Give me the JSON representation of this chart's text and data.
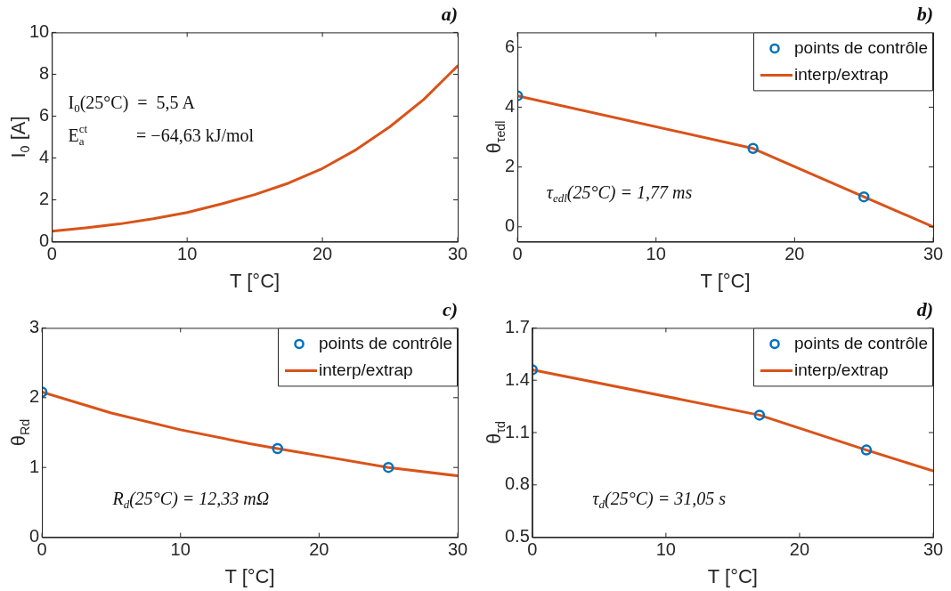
{
  "chart_data": [
    {
      "type": "line",
      "title": "a)",
      "xlabel": "T [°C]",
      "ylabel": "I$_{0}$ [A]",
      "xlim": [
        0,
        30
      ],
      "xticks": [
        0,
        10,
        20,
        30
      ],
      "ylim": [
        0,
        10
      ],
      "yticks": [
        0,
        2,
        4,
        6,
        8,
        10
      ],
      "series": [
        {
          "type": "line",
          "color": "#d95319",
          "x": [
            0,
            2.5,
            5,
            7.5,
            10,
            12.5,
            15,
            17.5,
            20,
            22.5,
            25,
            27.5,
            30
          ],
          "values": [
            0.5,
            0.66,
            0.85,
            1.1,
            1.4,
            1.8,
            2.25,
            2.8,
            3.5,
            4.4,
            5.5,
            6.8,
            8.4
          ]
        }
      ],
      "annotations": [
        "I$_{0}$(25°C)  =  5,5 A",
        "E$_{a}$$^{ct}$           = −64,63 kJ/mol"
      ]
    },
    {
      "type": "line",
      "title": "b)",
      "xlabel": "T [°C]",
      "ylabel": "θ$_{τedl}$",
      "xlim": [
        0,
        30
      ],
      "xticks": [
        0,
        10,
        20,
        30
      ],
      "ylim": [
        -0.5,
        6.5
      ],
      "yticks": [
        0,
        2,
        4,
        6
      ],
      "legend": "top right",
      "series": [
        {
          "type": "scatter",
          "name": "points de contrôle",
          "color": "#0072bd",
          "marker": "circle",
          "x": [
            0,
            17,
            25
          ],
          "values": [
            4.38,
            2.62,
            1.0
          ]
        },
        {
          "type": "line",
          "name": "interp/extrap",
          "color": "#d95319",
          "x": [
            0,
            17,
            25,
            30
          ],
          "values": [
            4.38,
            2.62,
            1.0,
            0.0
          ]
        }
      ],
      "annotations": [
        "τ$_{edl}$(25°C) = 1,77 ms"
      ]
    },
    {
      "type": "line",
      "title": "c)",
      "xlabel": "T [°C]",
      "ylabel": "θ$_{Rd}$",
      "xlim": [
        0,
        30
      ],
      "xticks": [
        0,
        10,
        20,
        30
      ],
      "ylim": [
        0,
        3
      ],
      "yticks": [
        0,
        1,
        2,
        3
      ],
      "legend": "top right",
      "series": [
        {
          "type": "scatter",
          "name": "points de contrôle",
          "color": "#0072bd",
          "marker": "circle",
          "x": [
            0,
            17,
            25
          ],
          "values": [
            2.08,
            1.27,
            1.0
          ]
        },
        {
          "type": "line",
          "name": "interp/extrap",
          "color": "#d95319",
          "x": [
            0,
            5,
            10,
            15,
            17,
            20,
            25,
            30
          ],
          "values": [
            2.08,
            1.78,
            1.54,
            1.34,
            1.27,
            1.17,
            1.0,
            0.88
          ]
        }
      ],
      "annotations": [
        "R$_{d}$(25°C) = 12,33 mΩ"
      ]
    },
    {
      "type": "line",
      "title": "d)",
      "xlabel": "T [°C]",
      "ylabel": "θ$_{τd}$",
      "xlim": [
        0,
        30
      ],
      "xticks": [
        0,
        10,
        20,
        30
      ],
      "ylim": [
        0.5,
        1.7
      ],
      "yticks": [
        0.5,
        0.8,
        1.1,
        1.4,
        1.7
      ],
      "legend": "top right",
      "series": [
        {
          "type": "scatter",
          "name": "points de contrôle",
          "color": "#0072bd",
          "marker": "circle",
          "x": [
            0,
            17,
            25
          ],
          "values": [
            1.46,
            1.2,
            1.0
          ]
        },
        {
          "type": "line",
          "name": "interp/extrap",
          "color": "#d95319",
          "x": [
            0,
            17,
            25,
            30
          ],
          "values": [
            1.46,
            1.2,
            1.0,
            0.88
          ]
        }
      ],
      "annotations": [
        "τ$_{d}$(25°C) = 31,05 s"
      ]
    }
  ]
}
